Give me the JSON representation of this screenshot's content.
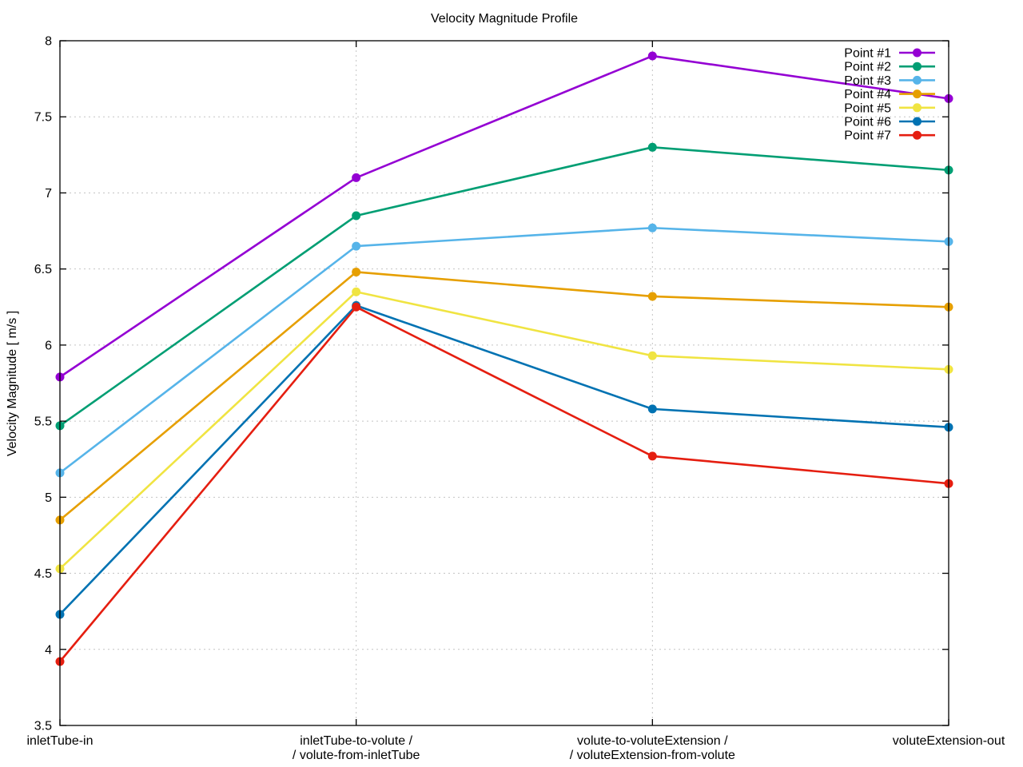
{
  "chart_data": {
    "type": "line",
    "title": "Velocity Magnitude Profile",
    "ylabel": "Velocity Magnitude [ m/s ]",
    "xlabel": "",
    "ylim": [
      3.5,
      8
    ],
    "yticks": [
      3.5,
      4,
      4.5,
      5,
      5.5,
      6,
      6.5,
      7,
      7.5,
      8
    ],
    "grid": "dotted",
    "legend_position": "top-right",
    "categories": [
      [
        "inletTube-in"
      ],
      [
        "inletTube-to-volute /",
        "/ volute-from-inletTube"
      ],
      [
        "volute-to-voluteExtension /",
        "/ voluteExtension-from-volute"
      ],
      [
        "voluteExtension-out"
      ]
    ],
    "series": [
      {
        "name": "Point #1",
        "color": "#9400d3",
        "values": [
          5.79,
          7.1,
          7.9,
          7.62
        ]
      },
      {
        "name": "Point #2",
        "color": "#009e73",
        "values": [
          5.47,
          6.85,
          7.3,
          7.15
        ]
      },
      {
        "name": "Point #3",
        "color": "#56b4e9",
        "values": [
          5.16,
          6.65,
          6.77,
          6.68
        ]
      },
      {
        "name": "Point #4",
        "color": "#e69f00",
        "values": [
          4.85,
          6.48,
          6.32,
          6.25
        ]
      },
      {
        "name": "Point #5",
        "color": "#f0e442",
        "values": [
          4.53,
          6.35,
          5.93,
          5.84
        ]
      },
      {
        "name": "Point #6",
        "color": "#0072b2",
        "values": [
          4.23,
          6.26,
          5.58,
          5.46
        ]
      },
      {
        "name": "Point #7",
        "color": "#e51e10",
        "values": [
          3.92,
          6.25,
          5.27,
          5.09
        ]
      }
    ],
    "style": {
      "grid_color": "#c4c4c4",
      "border_color": "#000000",
      "text_color": "#000000",
      "background": "#ffffff"
    }
  }
}
